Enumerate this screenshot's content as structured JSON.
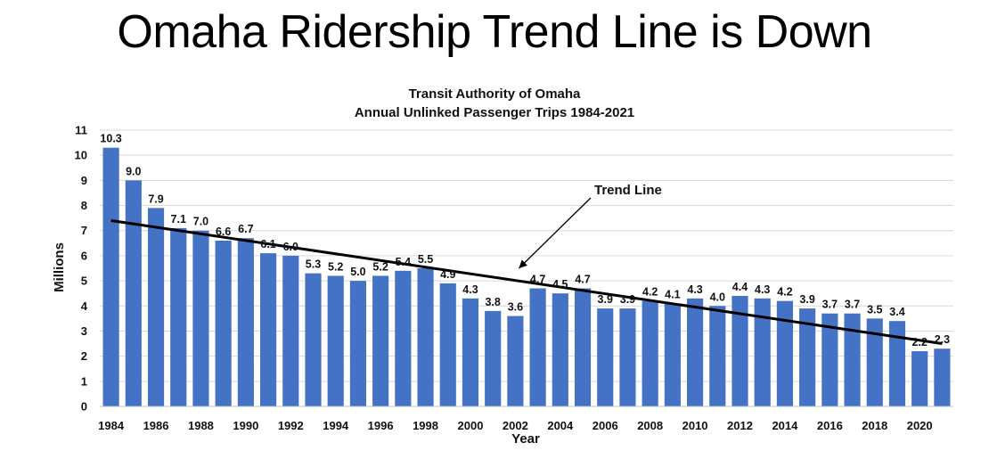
{
  "slide": {
    "title": "Omaha Ridership Trend Line is Down"
  },
  "chart_data": {
    "type": "bar",
    "title": "Transit Authority of Omaha",
    "subtitle": "Annual Unlinked Passenger Trips 1984-2021",
    "xlabel": "Year",
    "ylabel": "Millions",
    "ylim": [
      0,
      11
    ],
    "yticks": [
      0,
      1,
      2,
      3,
      4,
      5,
      6,
      7,
      8,
      9,
      10,
      11
    ],
    "grid": true,
    "categories": [
      "1984",
      "1985",
      "1986",
      "1987",
      "1988",
      "1989",
      "1990",
      "1991",
      "1992",
      "1993",
      "1994",
      "1995",
      "1996",
      "1997",
      "1998",
      "1999",
      "2000",
      "2001",
      "2002",
      "2003",
      "2004",
      "2005",
      "2006",
      "2007",
      "2008",
      "2009",
      "2010",
      "2011",
      "2012",
      "2013",
      "2014",
      "2015",
      "2016",
      "2017",
      "2018",
      "2019",
      "2020",
      "2021"
    ],
    "xtick_labels": [
      "1984",
      "",
      "1986",
      "",
      "1988",
      "",
      "1990",
      "",
      "1992",
      "",
      "1994",
      "",
      "1996",
      "",
      "1998",
      "",
      "2000",
      "",
      "2002",
      "",
      "2004",
      "",
      "2006",
      "",
      "2008",
      "",
      "2010",
      "",
      "2012",
      "",
      "2014",
      "",
      "2016",
      "",
      "2018",
      "",
      "2020",
      ""
    ],
    "values": [
      10.3,
      9.0,
      7.9,
      7.1,
      7.0,
      6.6,
      6.7,
      6.1,
      6.0,
      5.3,
      5.2,
      5.0,
      5.2,
      5.4,
      5.5,
      4.9,
      4.3,
      3.8,
      3.6,
      4.7,
      4.5,
      4.7,
      3.9,
      3.9,
      4.2,
      4.1,
      4.3,
      4.0,
      4.4,
      4.3,
      4.2,
      3.9,
      3.7,
      3.7,
      3.5,
      3.4,
      2.2,
      2.3
    ],
    "data_labels": [
      "10.3",
      "9.0",
      "7.9",
      "7.1",
      "7.0",
      "6.6",
      "6.7",
      "6.1",
      "6.0",
      "5.3",
      "5.2",
      "5.0",
      "5.2",
      "5.4",
      "5.5",
      "4.9",
      "4.3",
      "3.8",
      "3.6",
      "4.7",
      "4.5",
      "4.7",
      "3.9",
      "3.9",
      "4.2",
      "4.1",
      "4.3",
      "4.0",
      "4.4",
      "4.3",
      "4.2",
      "3.9",
      "3.7",
      "3.7",
      "3.5",
      "3.4",
      "2.2",
      "2.3"
    ],
    "bar_color": "#4472C4",
    "trend_line": {
      "start": [
        "1984",
        7.4
      ],
      "end": [
        "2021",
        2.5
      ],
      "color": "#000000"
    },
    "annotation": {
      "text": "Trend Line",
      "target_year": "2002",
      "target_value": 5.5
    }
  }
}
